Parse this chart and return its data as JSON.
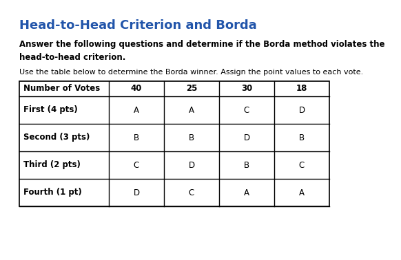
{
  "title": "Head-to-Head Criterion and Borda",
  "subtitle_bold": "Answer the following questions and determine if the Borda method violates the\nhead-to-head criterion.",
  "intro_text": "Use the table below to determine the Borda winner. Assign the point values to each vote.",
  "title_color": "#2255AA",
  "bg_color": "#ffffff",
  "table_headers": [
    "Number of Votes",
    "40",
    "25",
    "30",
    "18"
  ],
  "table_rows": [
    [
      "First (4 pts)",
      "A",
      "A",
      "C",
      "D"
    ],
    [
      "Second (3 pts)",
      "B",
      "B",
      "D",
      "B"
    ],
    [
      "Third (2 pts)",
      "C",
      "D",
      "B",
      "C"
    ],
    [
      "Fourth (1 pt)",
      "D",
      "C",
      "A",
      "A"
    ]
  ],
  "title_fontsize": 13,
  "subtitle_fontsize": 8.5,
  "intro_fontsize": 8,
  "table_fontsize": 8.5
}
